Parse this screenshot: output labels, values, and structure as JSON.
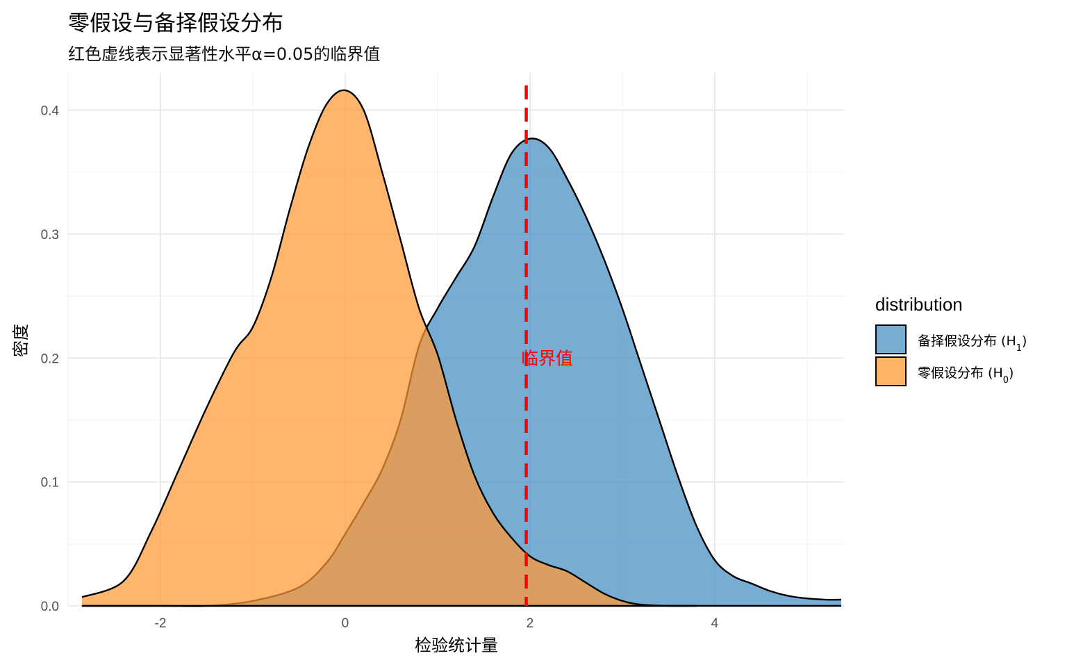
{
  "chart_data": {
    "type": "area",
    "title": "零假设与备择假设分布",
    "subtitle": "红色虚线表示显著性水平α=0.05的临界值",
    "xlabel": "检验统计量",
    "ylabel": "密度",
    "xlim": [
      -3,
      5.4
    ],
    "ylim": [
      0,
      0.43
    ],
    "x_ticks": [
      -2,
      0,
      2,
      4
    ],
    "y_ticks": [
      0.0,
      0.1,
      0.2,
      0.3,
      0.4
    ],
    "x_tick_labels": [
      "-2",
      "0",
      "2",
      "4"
    ],
    "y_tick_labels": [
      "0.0",
      "0.1",
      "0.2",
      "0.3",
      "0.4"
    ],
    "grid": true,
    "legend": {
      "title": "distribution",
      "position": "right",
      "entries": [
        {
          "label": "备择假设分布 (H",
          "sub": "1",
          "suffix": ")",
          "color": "#4A90C4"
        },
        {
          "label": "零假设分布 (H",
          "sub": "0",
          "suffix": ")",
          "color": "#FF9933"
        }
      ]
    },
    "critical_value": {
      "x": 1.96,
      "label": "临界值",
      "label_y": 0.2,
      "color": "#FF0000"
    },
    "series": [
      {
        "name": "备择假设分布 (H1)",
        "color": "#4A90C4",
        "opacity": 0.75,
        "x": [
          -2.85,
          -2,
          -1.5,
          -1,
          -0.5,
          -0.2,
          0,
          0.2,
          0.4,
          0.6,
          0.8,
          1.0,
          1.2,
          1.4,
          1.6,
          1.8,
          2.0,
          2.2,
          2.4,
          2.6,
          2.8,
          3.0,
          3.2,
          3.4,
          3.6,
          3.8,
          4.0,
          4.2,
          4.4,
          4.6,
          4.8,
          5.0,
          5.2,
          5.37
        ],
        "y": [
          0.0,
          0.0,
          0.0,
          0.004,
          0.015,
          0.035,
          0.058,
          0.083,
          0.11,
          0.15,
          0.21,
          0.24,
          0.265,
          0.29,
          0.33,
          0.365,
          0.377,
          0.37,
          0.345,
          0.315,
          0.28,
          0.24,
          0.195,
          0.15,
          0.105,
          0.065,
          0.037,
          0.024,
          0.018,
          0.012,
          0.008,
          0.006,
          0.005,
          0.005
        ]
      },
      {
        "name": "零假设分布 (H0)",
        "color": "#FF9933",
        "opacity": 0.72,
        "x": [
          -2.85,
          -2.4,
          -2.1,
          -1.8,
          -1.5,
          -1.2,
          -1.0,
          -0.8,
          -0.6,
          -0.4,
          -0.2,
          0.0,
          0.2,
          0.4,
          0.6,
          0.8,
          1.0,
          1.2,
          1.4,
          1.6,
          1.8,
          2.0,
          2.2,
          2.4,
          2.6,
          2.8,
          3.0,
          3.2,
          3.5,
          3.8
        ],
        "y": [
          0.007,
          0.02,
          0.06,
          0.11,
          0.16,
          0.205,
          0.225,
          0.265,
          0.32,
          0.37,
          0.405,
          0.416,
          0.4,
          0.35,
          0.295,
          0.24,
          0.203,
          0.15,
          0.105,
          0.075,
          0.055,
          0.04,
          0.033,
          0.028,
          0.019,
          0.01,
          0.004,
          0.001,
          0.0,
          0.0
        ]
      }
    ]
  }
}
